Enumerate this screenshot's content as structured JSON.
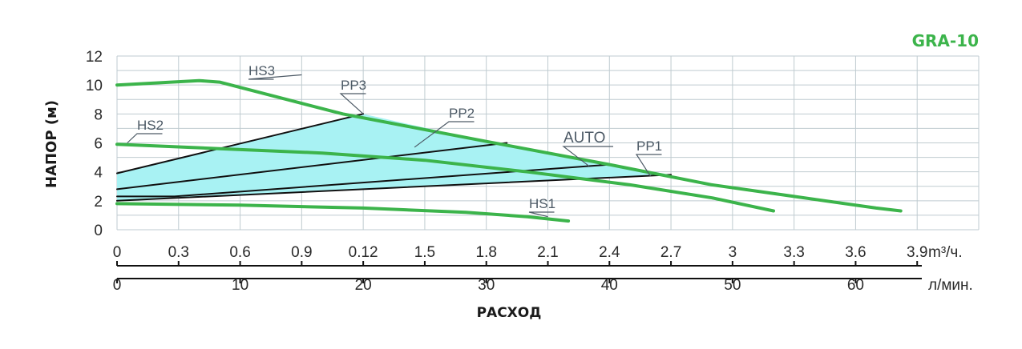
{
  "chart_data": {
    "type": "line",
    "title": "GRA-10",
    "ylabel": "НАПОР (м)",
    "xlabel": "РАСХОД",
    "y_ticks": [
      "0",
      "2",
      "4",
      "6",
      "8",
      "10",
      "12"
    ],
    "ylim": [
      0,
      12
    ],
    "x_ticks_m3h": [
      "0",
      "0.3",
      "0.6",
      "0.9",
      "0.12",
      "1.5",
      "1.8",
      "2.1",
      "2.4",
      "2.7",
      "3",
      "3.3",
      "3.6",
      "3.9"
    ],
    "x_unit_m3h": "m³/ч.",
    "x_ticks_lmin": [
      "0",
      "10",
      "20",
      "30",
      "40",
      "50",
      "60"
    ],
    "x_unit_lmin": "л/мин.",
    "xlim_m3h": [
      0,
      4.2
    ],
    "grid": true,
    "colors": {
      "curve": "#3cb44b",
      "area": "#a8f2f3",
      "line": "#111111",
      "title": "#3cb44b"
    },
    "series": [
      {
        "name": "HS3",
        "kind": "max",
        "x": [
          0,
          0.4,
          0.5,
          1.1,
          1.8,
          2.4,
          2.9,
          3.3,
          3.7,
          3.82
        ],
        "y": [
          10.0,
          10.3,
          10.2,
          8.0,
          6.1,
          4.5,
          3.1,
          2.3,
          1.5,
          1.3
        ]
      },
      {
        "name": "HS2",
        "kind": "max",
        "x": [
          0,
          0.5,
          1.0,
          1.5,
          2.0,
          2.5,
          2.9,
          3.2
        ],
        "y": [
          5.9,
          5.6,
          5.3,
          4.8,
          4.0,
          3.1,
          2.2,
          1.3
        ]
      },
      {
        "name": "HS1",
        "kind": "max",
        "x": [
          0,
          0.6,
          1.2,
          1.7,
          2.0,
          2.2
        ],
        "y": [
          1.8,
          1.7,
          1.5,
          1.2,
          0.9,
          0.6
        ]
      },
      {
        "name": "PP3",
        "kind": "control",
        "x": [
          0,
          1.2
        ],
        "y": [
          3.9,
          8.0
        ]
      },
      {
        "name": "PP2",
        "kind": "control",
        "x": [
          0,
          1.9
        ],
        "y": [
          2.8,
          6.0
        ]
      },
      {
        "name": "AUTO",
        "kind": "control",
        "x": [
          0,
          0.28,
          2.4
        ],
        "y": [
          2.3,
          2.3,
          4.5
        ]
      },
      {
        "name": "PP1",
        "kind": "control",
        "x": [
          0,
          2.7
        ],
        "y": [
          2.0,
          3.8
        ]
      }
    ]
  }
}
